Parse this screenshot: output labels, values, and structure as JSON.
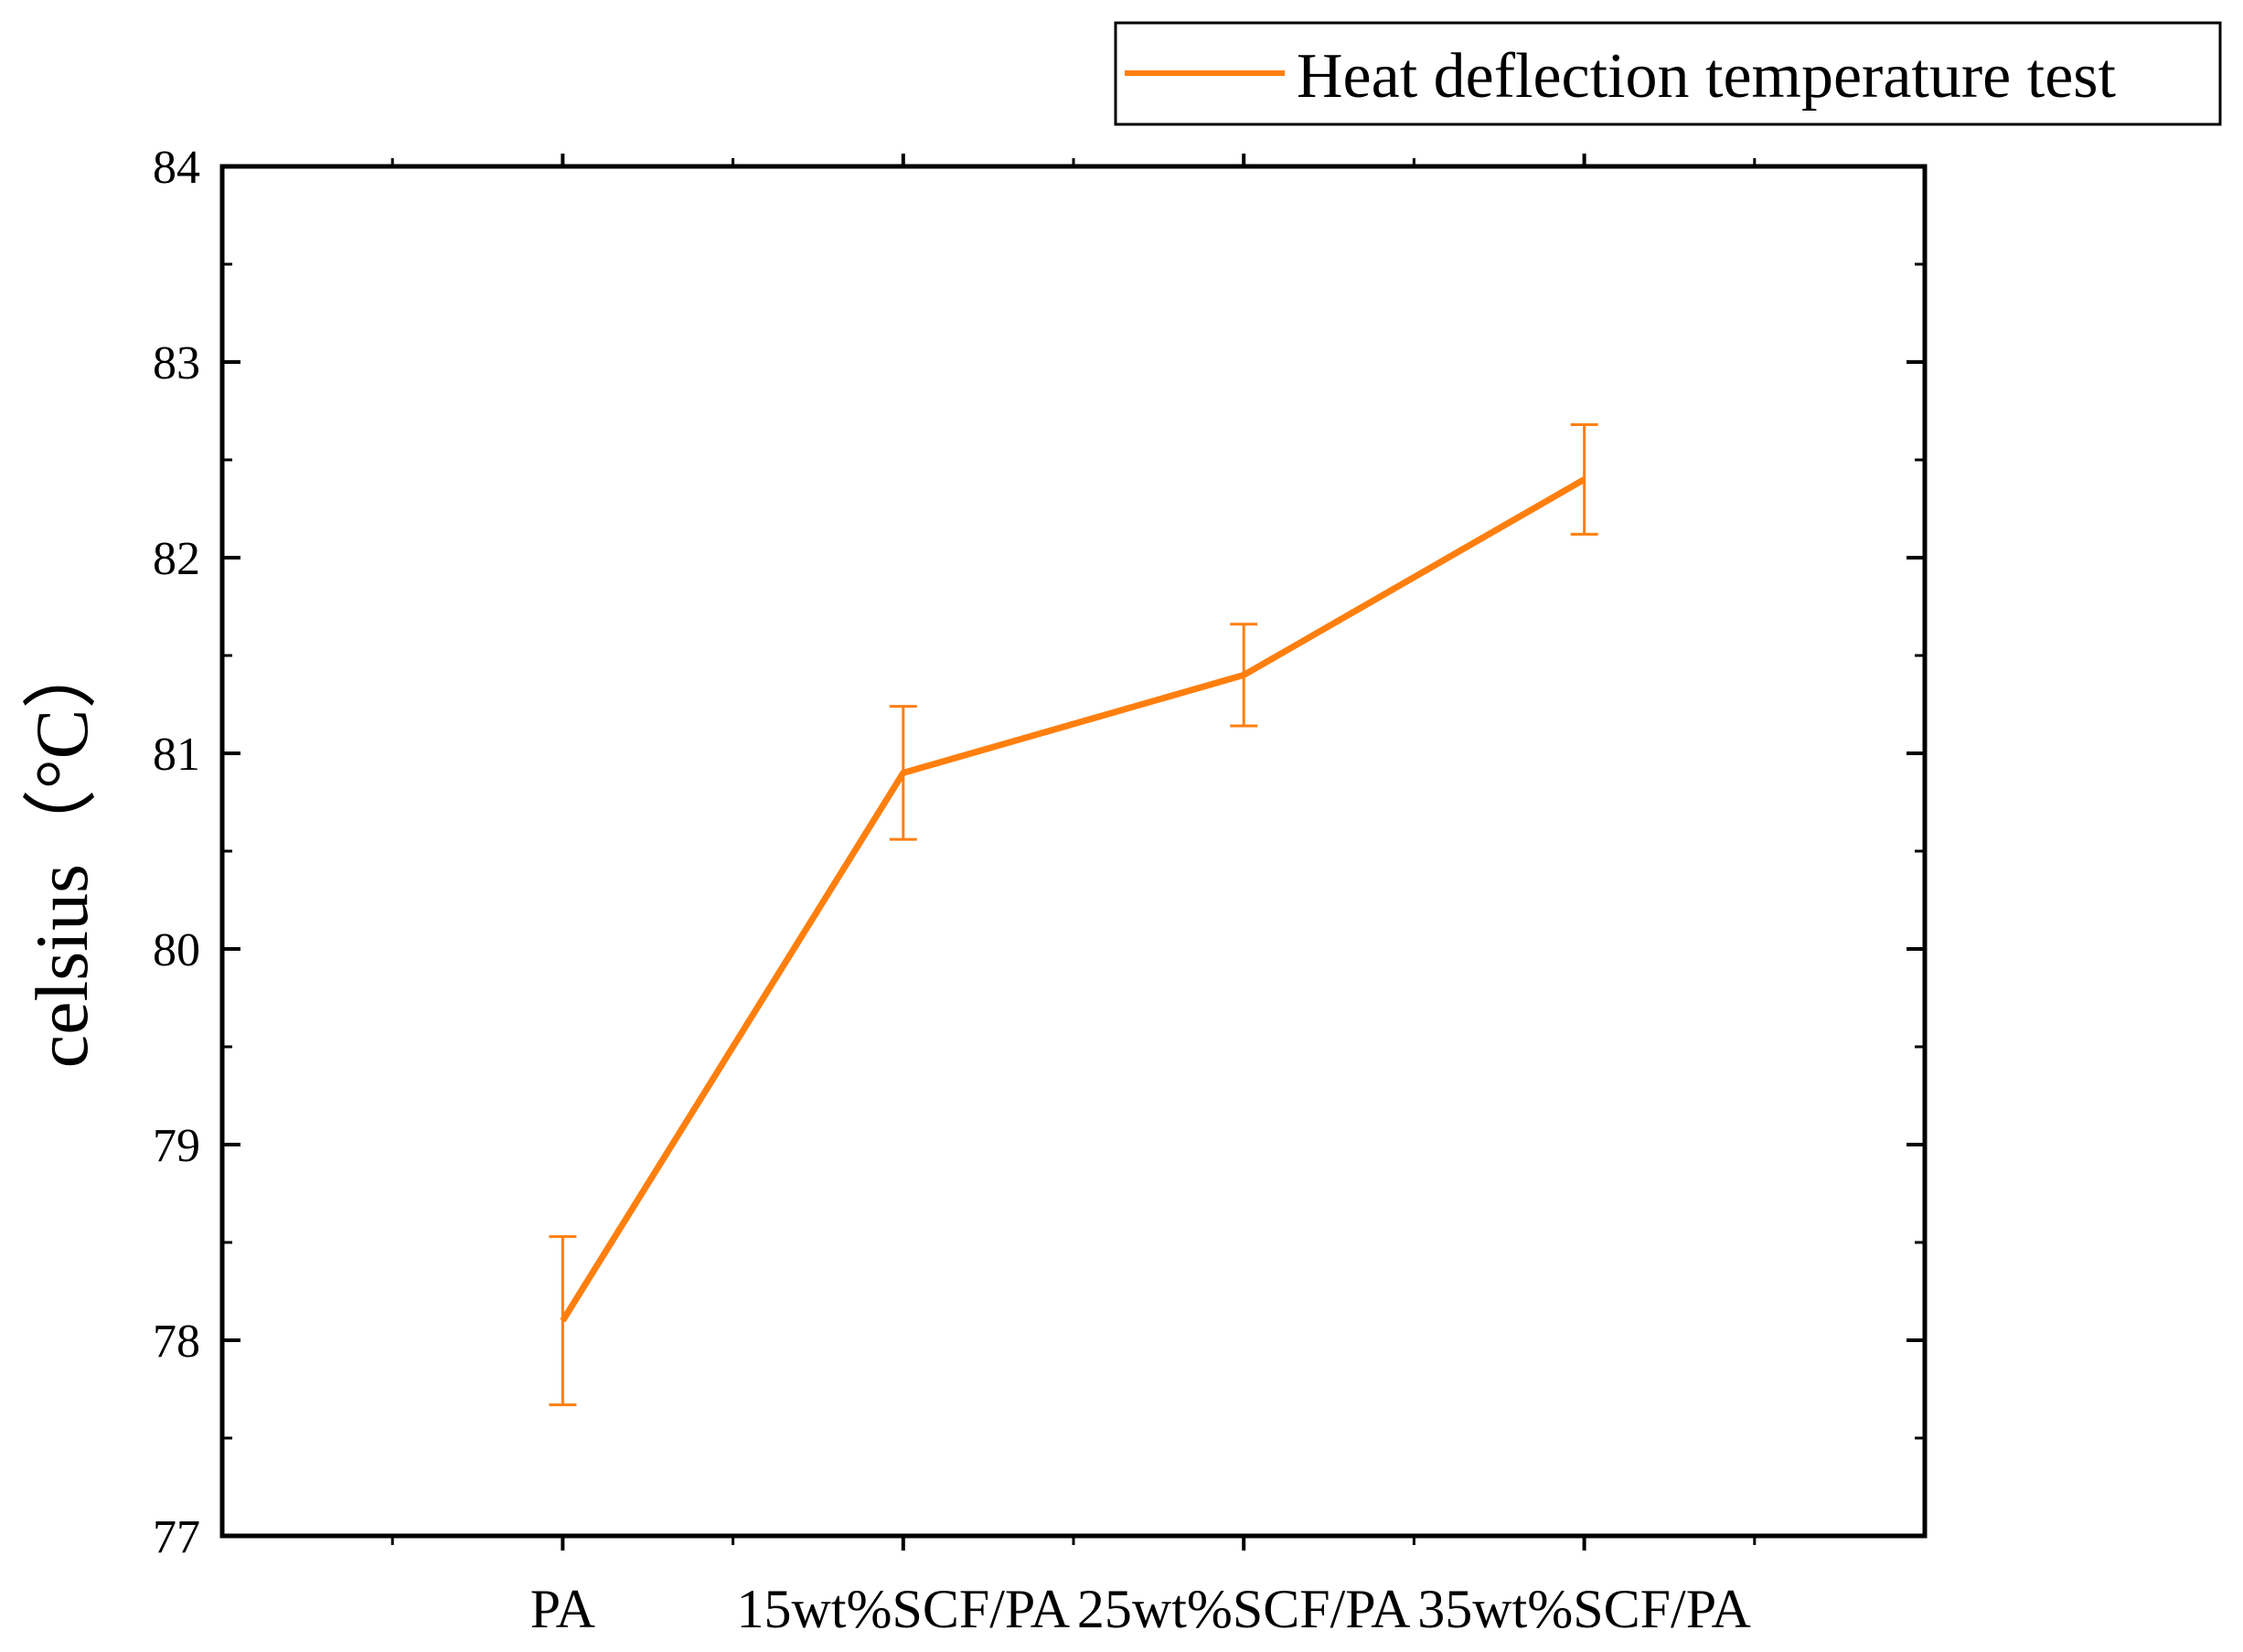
{
  "chart_data": {
    "type": "line",
    "categories": [
      "PA",
      "15wt%SCF/PA",
      "25wt%SCF/PA",
      "35wt%SCF/PA"
    ],
    "series": [
      {
        "name": "Heat deflection temperature test",
        "values": [
          78.1,
          80.9,
          81.4,
          82.4
        ],
        "errors": [
          0.43,
          0.34,
          0.26,
          0.28
        ],
        "color": "#ff7f0e"
      }
    ],
    "ylabel": "celsius（°C）",
    "xlabel": "",
    "ylim": [
      77,
      84
    ],
    "yticks": [
      "77",
      "78",
      "79",
      "80",
      "81",
      "82",
      "83",
      "84"
    ],
    "legend_position": "top-right",
    "grid": false
  }
}
